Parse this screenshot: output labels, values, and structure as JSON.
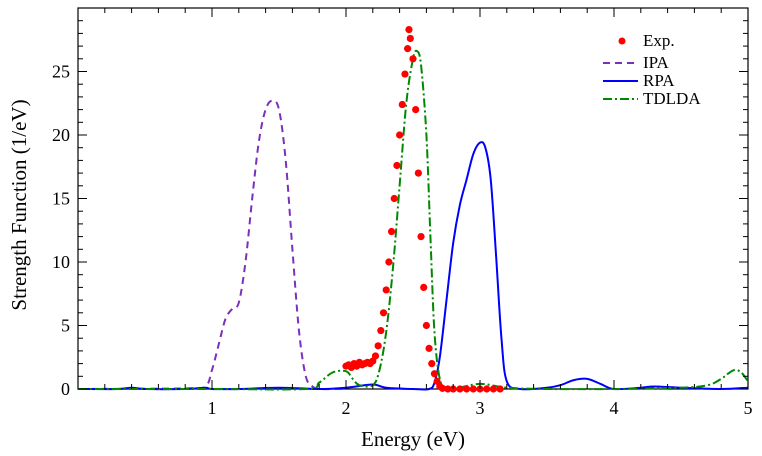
{
  "chart_data": {
    "type": "line",
    "xlabel": "Energy (eV)",
    "ylabel": "Strength Function (1/eV)",
    "xlim": [
      0,
      5
    ],
    "ylim": [
      0,
      30
    ],
    "x_ticks": [
      "1",
      "2",
      "3",
      "4",
      "5"
    ],
    "y_ticks": [
      "0",
      "5",
      "10",
      "15",
      "20",
      "25"
    ],
    "legend_position": "top-right",
    "legend": [
      "Exp.",
      "IPA",
      "RPA",
      "TDLDA"
    ],
    "colors": {
      "exp": "#ff0000",
      "ipa": "#7b2fbe",
      "rpa": "#0000ff",
      "tdlda": "#008800"
    },
    "series": [
      {
        "name": "IPA",
        "style": "dashed",
        "x": [
          0.0,
          0.8,
          0.95,
          1.0,
          1.05,
          1.1,
          1.15,
          1.2,
          1.25,
          1.3,
          1.35,
          1.4,
          1.45,
          1.5,
          1.55,
          1.6,
          1.65,
          1.7,
          1.75,
          1.8,
          1.9,
          2.0
        ],
        "y": [
          0.0,
          0.05,
          0.2,
          1.5,
          3.5,
          5.5,
          6.3,
          6.8,
          10.0,
          15.0,
          19.5,
          22.0,
          22.7,
          22.0,
          18.0,
          11.0,
          4.5,
          1.0,
          0.2,
          0.0,
          0.0,
          0.0
        ]
      },
      {
        "name": "RPA",
        "style": "solid",
        "x": [
          0.0,
          0.3,
          0.4,
          0.5,
          0.8,
          0.95,
          1.0,
          1.2,
          1.5,
          1.8,
          2.0,
          2.2,
          2.3,
          2.5,
          2.62,
          2.66,
          2.7,
          2.75,
          2.8,
          2.85,
          2.9,
          2.95,
          3.0,
          3.04,
          3.08,
          3.12,
          3.16,
          3.2,
          3.3,
          3.5,
          3.6,
          3.7,
          3.8,
          3.9,
          4.0,
          4.2,
          4.3,
          4.5,
          4.8,
          5.0
        ],
        "y": [
          0.0,
          0.0,
          0.1,
          0.0,
          0.0,
          0.1,
          0.0,
          0.0,
          0.1,
          0.0,
          0.1,
          0.35,
          0.1,
          0.0,
          0.0,
          0.5,
          2.5,
          7.0,
          11.5,
          14.5,
          16.5,
          18.5,
          19.4,
          19.0,
          16.5,
          10.5,
          4.0,
          0.6,
          0.0,
          0.1,
          0.3,
          0.7,
          0.8,
          0.4,
          0.0,
          0.1,
          0.2,
          0.1,
          0.0,
          0.1
        ]
      },
      {
        "name": "TDLDA",
        "style": "dash-dot",
        "x": [
          0.0,
          1.0,
          1.7,
          1.8,
          1.9,
          2.0,
          2.05,
          2.1,
          2.2,
          2.25,
          2.3,
          2.35,
          2.4,
          2.45,
          2.5,
          2.53,
          2.56,
          2.6,
          2.63,
          2.66,
          2.7,
          2.75,
          2.8,
          3.0,
          3.2,
          3.5,
          4.0,
          4.5,
          4.7,
          4.8,
          4.85,
          4.9,
          4.95,
          5.0
        ],
        "y": [
          0.0,
          0.0,
          0.0,
          0.5,
          1.3,
          1.4,
          0.8,
          0.3,
          0.3,
          1.5,
          4.5,
          9.5,
          16.0,
          22.5,
          26.0,
          26.6,
          25.5,
          20.0,
          12.0,
          4.5,
          0.8,
          0.1,
          0.0,
          0.4,
          0.1,
          0.0,
          0.0,
          0.1,
          0.3,
          0.8,
          1.2,
          1.5,
          1.3,
          0.6
        ]
      }
    ],
    "exp_points": [
      [
        2.0,
        1.8
      ],
      [
        2.02,
        1.9
      ],
      [
        2.04,
        1.7
      ],
      [
        2.06,
        2.0
      ],
      [
        2.08,
        1.8
      ],
      [
        2.1,
        2.1
      ],
      [
        2.12,
        1.9
      ],
      [
        2.14,
        2.0
      ],
      [
        2.16,
        2.1
      ],
      [
        2.18,
        2.0
      ],
      [
        2.2,
        2.2
      ],
      [
        2.22,
        2.6
      ],
      [
        2.24,
        3.4
      ],
      [
        2.26,
        4.6
      ],
      [
        2.28,
        6.0
      ],
      [
        2.3,
        7.8
      ],
      [
        2.32,
        10.0
      ],
      [
        2.34,
        12.4
      ],
      [
        2.36,
        15.0
      ],
      [
        2.38,
        17.6
      ],
      [
        2.4,
        20.0
      ],
      [
        2.42,
        22.4
      ],
      [
        2.44,
        24.8
      ],
      [
        2.46,
        26.8
      ],
      [
        2.47,
        28.3
      ],
      [
        2.48,
        27.6
      ],
      [
        2.5,
        26.0
      ],
      [
        2.52,
        22.0
      ],
      [
        2.54,
        17.0
      ],
      [
        2.56,
        12.0
      ],
      [
        2.58,
        8.0
      ],
      [
        2.6,
        5.0
      ],
      [
        2.62,
        3.2
      ],
      [
        2.64,
        2.0
      ],
      [
        2.66,
        1.2
      ],
      [
        2.68,
        0.6
      ],
      [
        2.7,
        0.2
      ],
      [
        2.72,
        0.05
      ],
      [
        2.76,
        0.0
      ],
      [
        2.8,
        0.0
      ],
      [
        2.85,
        0.0
      ],
      [
        2.9,
        0.0
      ],
      [
        2.95,
        0.0
      ],
      [
        3.0,
        0.0
      ],
      [
        3.05,
        0.0
      ],
      [
        3.1,
        0.0
      ],
      [
        3.15,
        0.0
      ]
    ]
  }
}
